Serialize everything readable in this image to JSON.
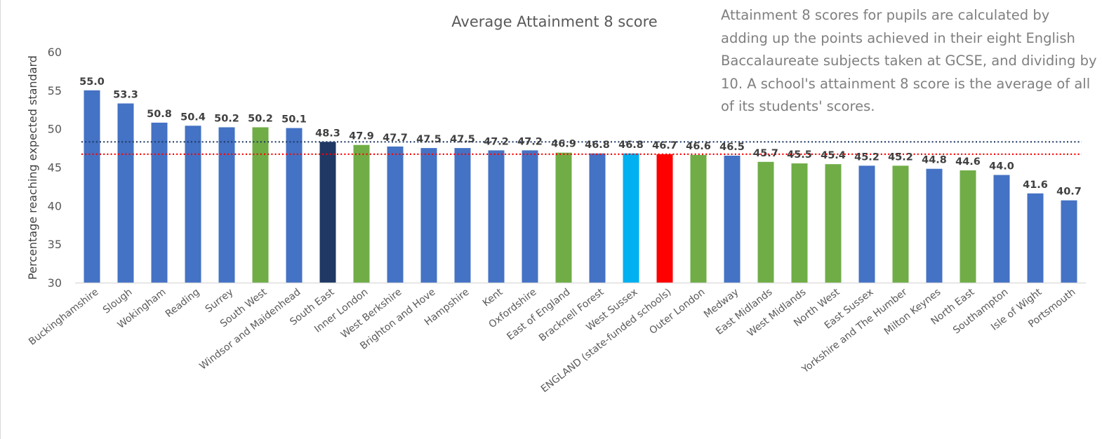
{
  "chart_data": {
    "type": "bar",
    "title": "Average Attainment 8 score",
    "ylabel": "Percentage reaching expected standard",
    "xlabel": "",
    "ylim": [
      30,
      60
    ],
    "yticks": [
      30,
      35,
      40,
      45,
      50,
      55,
      60
    ],
    "grid": false,
    "annotation": "Attainment 8 scores for pupils are calculated by adding up the points achieved in their eight English Baccalaureate subjects taken at GCSE, and dividing by 10. A school's attainment 8 score is the average of all of its students' scores.",
    "categories": [
      "Buckinghamshire",
      "Slough",
      "Wokingham",
      "Reading",
      "Surrey",
      "South West",
      "Windsor and Maidenhead",
      "South East",
      "Inner London",
      "West Berkshire",
      "Brighton and Hove",
      "Hampshire",
      "Kent",
      "Oxfordshire",
      "East of England",
      "Bracknell Forest",
      "West Sussex",
      "ENGLAND (state-funded schools)",
      "Outer London",
      "Medway",
      "East Midlands",
      "West Midlands",
      "North West",
      "East Sussex",
      "Yorkshire and The Humber",
      "Milton Keynes",
      "North East",
      "Southampton",
      "Isle of Wight",
      "Portsmouth"
    ],
    "values": [
      55.0,
      53.3,
      50.8,
      50.4,
      50.2,
      50.2,
      50.1,
      48.3,
      47.9,
      47.7,
      47.5,
      47.5,
      47.2,
      47.2,
      46.9,
      46.8,
      46.8,
      46.7,
      46.6,
      46.5,
      45.7,
      45.5,
      45.4,
      45.2,
      45.2,
      44.8,
      44.6,
      44.0,
      41.6,
      40.7
    ],
    "value_labels": [
      "55.0",
      "53.3",
      "50.8",
      "50.4",
      "50.2",
      "50.2",
      "50.1",
      "48.3",
      "47.9",
      "47.7",
      "47.5",
      "47.5",
      "47.2",
      "47.2",
      "46.9",
      "46.8",
      "46.8",
      "46.7",
      "46.6",
      "46.5",
      "45.7",
      "45.5",
      "45.4",
      "45.2",
      "45.2",
      "44.8",
      "44.6",
      "44.0",
      "41.6",
      "40.7"
    ],
    "bar_colors": [
      "#4472c4",
      "#4472c4",
      "#4472c4",
      "#4472c4",
      "#4472c4",
      "#70ad47",
      "#4472c4",
      "#1f3864",
      "#70ad47",
      "#4472c4",
      "#4472c4",
      "#4472c4",
      "#4472c4",
      "#4472c4",
      "#70ad47",
      "#4472c4",
      "#00b0f0",
      "#ff0000",
      "#70ad47",
      "#4472c4",
      "#70ad47",
      "#70ad47",
      "#70ad47",
      "#4472c4",
      "#70ad47",
      "#4472c4",
      "#70ad47",
      "#4472c4",
      "#4472c4",
      "#4472c4"
    ],
    "reference_lines": [
      {
        "value": 48.3,
        "color": "#1f3864",
        "style": "dotted"
      },
      {
        "value": 46.7,
        "color": "#ff0000",
        "style": "dotted"
      }
    ]
  }
}
